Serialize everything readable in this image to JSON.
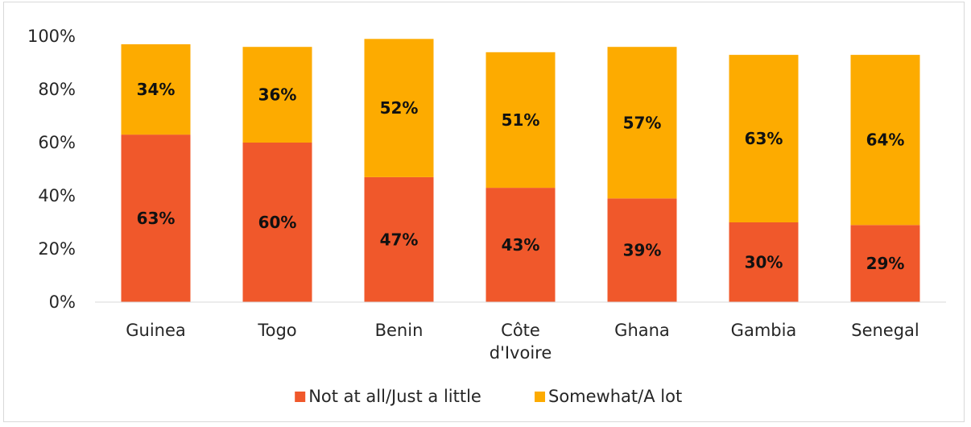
{
  "chart_data": {
    "type": "bar",
    "stacked": true,
    "categories": [
      "Guinea",
      "Togo",
      "Benin",
      "Côte d'Ivoire",
      "Ghana",
      "Gambia",
      "Senegal"
    ],
    "series": [
      {
        "name": "Not at all/Just a little",
        "color": "#f0582b",
        "values": [
          63,
          60,
          47,
          43,
          39,
          30,
          29
        ]
      },
      {
        "name": "Somewhat/A lot",
        "color": "#fdab00",
        "values": [
          34,
          36,
          52,
          51,
          57,
          63,
          64
        ]
      }
    ],
    "ylim": [
      0,
      100
    ],
    "yticks": [
      "0%",
      "20%",
      "40%",
      "60%",
      "80%",
      "100%"
    ],
    "grid": false,
    "legend_position": "bottom"
  }
}
